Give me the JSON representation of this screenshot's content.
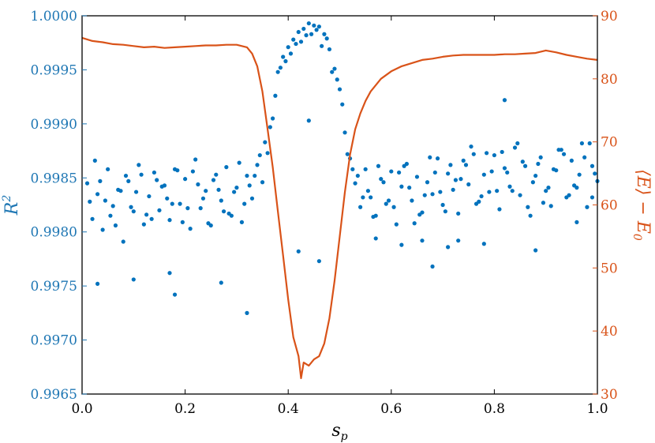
{
  "colors": {
    "left_axis": "#1f77b4",
    "right_axis": "#d95319",
    "scatter": "#0072bd",
    "line": "#d95319",
    "frame": "#000000"
  },
  "chart_data": {
    "type": "scatter+line",
    "xlabel": "s_p",
    "x_label_main": "s",
    "x_label_sub": "p",
    "xlim": [
      0.0,
      1.0
    ],
    "x_ticks": [
      "0.0",
      "0.2",
      "0.4",
      "0.6",
      "0.8",
      "1.0"
    ],
    "x_tick_values": [
      0.0,
      0.2,
      0.4,
      0.6,
      0.8,
      1.0
    ],
    "y_left": {
      "label": "R^2",
      "label_main": "R",
      "label_sup": "2",
      "lim": [
        0.9965,
        1.0
      ],
      "ticks": [
        "0.9965",
        "0.9970",
        "0.9975",
        "0.9980",
        "0.9985",
        "0.9990",
        "0.9995",
        "1.0000"
      ],
      "tick_values": [
        0.9965,
        0.997,
        0.9975,
        0.998,
        0.9985,
        0.999,
        0.9995,
        1.0
      ]
    },
    "y_right": {
      "label": "⟨E⟩ − E_0",
      "label_main": "⟨E⟩ − E",
      "label_sub": "0",
      "lim": [
        30,
        90
      ],
      "ticks": [
        "30",
        "40",
        "50",
        "60",
        "70",
        "80",
        "90"
      ],
      "tick_values": [
        30,
        40,
        50,
        60,
        70,
        80,
        90
      ]
    },
    "scatter_series": {
      "axis": "left",
      "x": [
        0.01,
        0.02,
        0.03,
        0.04,
        0.05,
        0.06,
        0.07,
        0.08,
        0.09,
        0.1,
        0.11,
        0.12,
        0.13,
        0.14,
        0.15,
        0.16,
        0.17,
        0.18,
        0.19,
        0.2,
        0.21,
        0.22,
        0.23,
        0.24,
        0.25,
        0.26,
        0.27,
        0.28,
        0.29,
        0.3,
        0.31,
        0.32,
        0.33,
        0.34,
        0.35,
        0.36,
        0.37,
        0.38,
        0.39,
        0.4,
        0.41,
        0.42,
        0.43,
        0.44,
        0.45,
        0.46,
        0.47,
        0.48,
        0.49,
        0.5,
        0.51,
        0.52,
        0.53,
        0.54,
        0.55,
        0.56,
        0.57,
        0.58,
        0.59,
        0.6,
        0.61,
        0.62,
        0.63,
        0.64,
        0.65,
        0.66,
        0.67,
        0.68,
        0.69,
        0.7,
        0.71,
        0.72,
        0.73,
        0.74,
        0.75,
        0.76,
        0.77,
        0.78,
        0.79,
        0.8,
        0.81,
        0.82,
        0.83,
        0.84,
        0.85,
        0.86,
        0.87,
        0.88,
        0.89,
        0.9,
        0.91,
        0.92,
        0.93,
        0.94,
        0.95,
        0.96,
        0.97,
        0.98,
        0.99,
        1.0,
        0.015,
        0.035,
        0.055,
        0.075,
        0.095,
        0.115,
        0.135,
        0.155,
        0.175,
        0.195,
        0.215,
        0.235,
        0.255,
        0.275,
        0.295,
        0.315,
        0.335,
        0.355,
        0.375,
        0.395,
        0.415,
        0.435,
        0.455,
        0.475,
        0.495,
        0.515,
        0.535,
        0.555,
        0.575,
        0.595,
        0.615,
        0.635,
        0.655,
        0.675,
        0.695,
        0.715,
        0.735,
        0.755,
        0.775,
        0.795,
        0.815,
        0.835,
        0.855,
        0.875,
        0.895,
        0.915,
        0.935,
        0.955,
        0.975,
        0.995,
        0.025,
        0.045,
        0.065,
        0.085,
        0.105,
        0.125,
        0.145,
        0.165,
        0.185,
        0.205,
        0.225,
        0.245,
        0.265,
        0.285,
        0.305,
        0.325,
        0.345,
        0.365,
        0.385,
        0.405,
        0.425,
        0.445,
        0.465,
        0.485,
        0.505,
        0.525,
        0.545,
        0.565,
        0.585,
        0.605,
        0.625,
        0.645,
        0.665,
        0.685,
        0.705,
        0.725,
        0.745,
        0.765,
        0.785,
        0.805,
        0.825,
        0.845,
        0.865,
        0.885,
        0.905,
        0.925,
        0.945,
        0.965,
        0.985,
        0.03,
        0.1,
        0.17,
        0.18,
        0.27,
        0.32,
        0.42,
        0.44,
        0.46,
        0.68,
        0.73,
        0.78,
        0.82,
        0.88,
        0.96,
        0.99,
        0.57,
        0.62,
        0.66,
        0.71
      ],
      "y": [
        0.99845,
        0.99812,
        0.99835,
        0.99802,
        0.99858,
        0.99824,
        0.99839,
        0.99791,
        0.99847,
        0.99819,
        0.99862,
        0.99807,
        0.99833,
        0.99855,
        0.9982,
        0.99843,
        0.99811,
        0.99858,
        0.99826,
        0.99849,
        0.99803,
        0.99867,
        0.99822,
        0.99838,
        0.99806,
        0.99853,
        0.99829,
        0.9986,
        0.99815,
        0.99841,
        0.99809,
        0.99852,
        0.99831,
        0.99862,
        0.99846,
        0.99873,
        0.99905,
        0.99948,
        0.99962,
        0.99971,
        0.99978,
        0.99985,
        0.99988,
        0.99993,
        0.99991,
        0.9999,
        0.99983,
        0.99969,
        0.99951,
        0.99932,
        0.99892,
        0.99868,
        0.99845,
        0.99823,
        0.99858,
        0.99832,
        0.99815,
        0.99849,
        0.99826,
        0.99856,
        0.99807,
        0.99842,
        0.99863,
        0.99829,
        0.99851,
        0.99818,
        0.99846,
        0.99835,
        0.99868,
        0.99825,
        0.99854,
        0.99839,
        0.99817,
        0.99866,
        0.99844,
        0.99872,
        0.99828,
        0.99853,
        0.99837,
        0.99871,
        0.99821,
        0.99859,
        0.99842,
        0.99878,
        0.99834,
        0.99861,
        0.99815,
        0.99852,
        0.99869,
        0.99838,
        0.99824,
        0.99857,
        0.99876,
        0.99832,
        0.99866,
        0.99841,
        0.99882,
        0.99823,
        0.99861,
        0.99847,
        0.99828,
        0.99847,
        0.99815,
        0.99838,
        0.99823,
        0.99853,
        0.99812,
        0.99842,
        0.99826,
        0.99809,
        0.99856,
        0.99831,
        0.99848,
        0.99819,
        0.99837,
        0.99826,
        0.99852,
        0.99883,
        0.99926,
        0.99958,
        0.99974,
        0.99982,
        0.99987,
        0.99979,
        0.99941,
        0.99872,
        0.99852,
        0.99838,
        0.99861,
        0.99829,
        0.99855,
        0.99841,
        0.99816,
        0.99869,
        0.99837,
        0.99862,
        0.99849,
        0.99879,
        0.99833,
        0.99856,
        0.99874,
        0.99838,
        0.99865,
        0.99846,
        0.99827,
        0.99858,
        0.99872,
        0.99843,
        0.99869,
        0.99854,
        0.99866,
        0.99829,
        0.99806,
        0.99852,
        0.99837,
        0.99816,
        0.99848,
        0.99831,
        0.99857,
        0.99822,
        0.99844,
        0.99808,
        0.99839,
        0.99817,
        0.99864,
        0.99843,
        0.99871,
        0.99897,
        0.99952,
        0.99965,
        0.99976,
        0.99983,
        0.99972,
        0.99948,
        0.99918,
        0.99858,
        0.99832,
        0.99814,
        0.99846,
        0.99823,
        0.99861,
        0.99808,
        0.99834,
        0.99855,
        0.99819,
        0.99848,
        0.99862,
        0.99826,
        0.99873,
        0.99838,
        0.99855,
        0.99882,
        0.99823,
        0.99863,
        0.99841,
        0.99876,
        0.99834,
        0.99853,
        0.99882,
        0.99752,
        0.99756,
        0.99762,
        0.99742,
        0.99753,
        0.99725,
        0.99782,
        0.99903,
        0.99773,
        0.99768,
        0.99792,
        0.99789,
        0.99922,
        0.99783,
        0.99809,
        0.99832,
        0.99794,
        0.99788,
        0.99792,
        0.99786
      ]
    },
    "line_series": {
      "axis": "right",
      "x": [
        0.0,
        0.02,
        0.04,
        0.06,
        0.08,
        0.1,
        0.12,
        0.14,
        0.16,
        0.18,
        0.2,
        0.22,
        0.24,
        0.26,
        0.28,
        0.3,
        0.32,
        0.33,
        0.34,
        0.35,
        0.36,
        0.37,
        0.38,
        0.39,
        0.4,
        0.41,
        0.42,
        0.425,
        0.43,
        0.44,
        0.45,
        0.46,
        0.47,
        0.48,
        0.49,
        0.5,
        0.51,
        0.52,
        0.53,
        0.54,
        0.55,
        0.56,
        0.58,
        0.6,
        0.62,
        0.64,
        0.66,
        0.68,
        0.7,
        0.72,
        0.74,
        0.76,
        0.78,
        0.8,
        0.82,
        0.84,
        0.86,
        0.88,
        0.9,
        0.92,
        0.94,
        0.96,
        0.98,
        1.0
      ],
      "y": [
        86.5,
        86.0,
        85.8,
        85.5,
        85.4,
        85.2,
        85.0,
        85.1,
        84.9,
        85.0,
        85.1,
        85.2,
        85.3,
        85.3,
        85.4,
        85.4,
        85.0,
        84.0,
        82.0,
        78.0,
        72.0,
        66.0,
        59.0,
        52.0,
        45.0,
        39.0,
        36.0,
        32.5,
        35.0,
        34.5,
        35.5,
        36.0,
        38.0,
        42.0,
        48.0,
        55.0,
        62.0,
        68.0,
        72.0,
        74.5,
        76.5,
        78.0,
        80.0,
        81.2,
        82.0,
        82.5,
        83.0,
        83.2,
        83.5,
        83.7,
        83.8,
        83.8,
        83.8,
        83.8,
        83.9,
        83.9,
        84.0,
        84.1,
        84.5,
        84.2,
        83.8,
        83.5,
        83.2,
        83.0
      ]
    }
  }
}
